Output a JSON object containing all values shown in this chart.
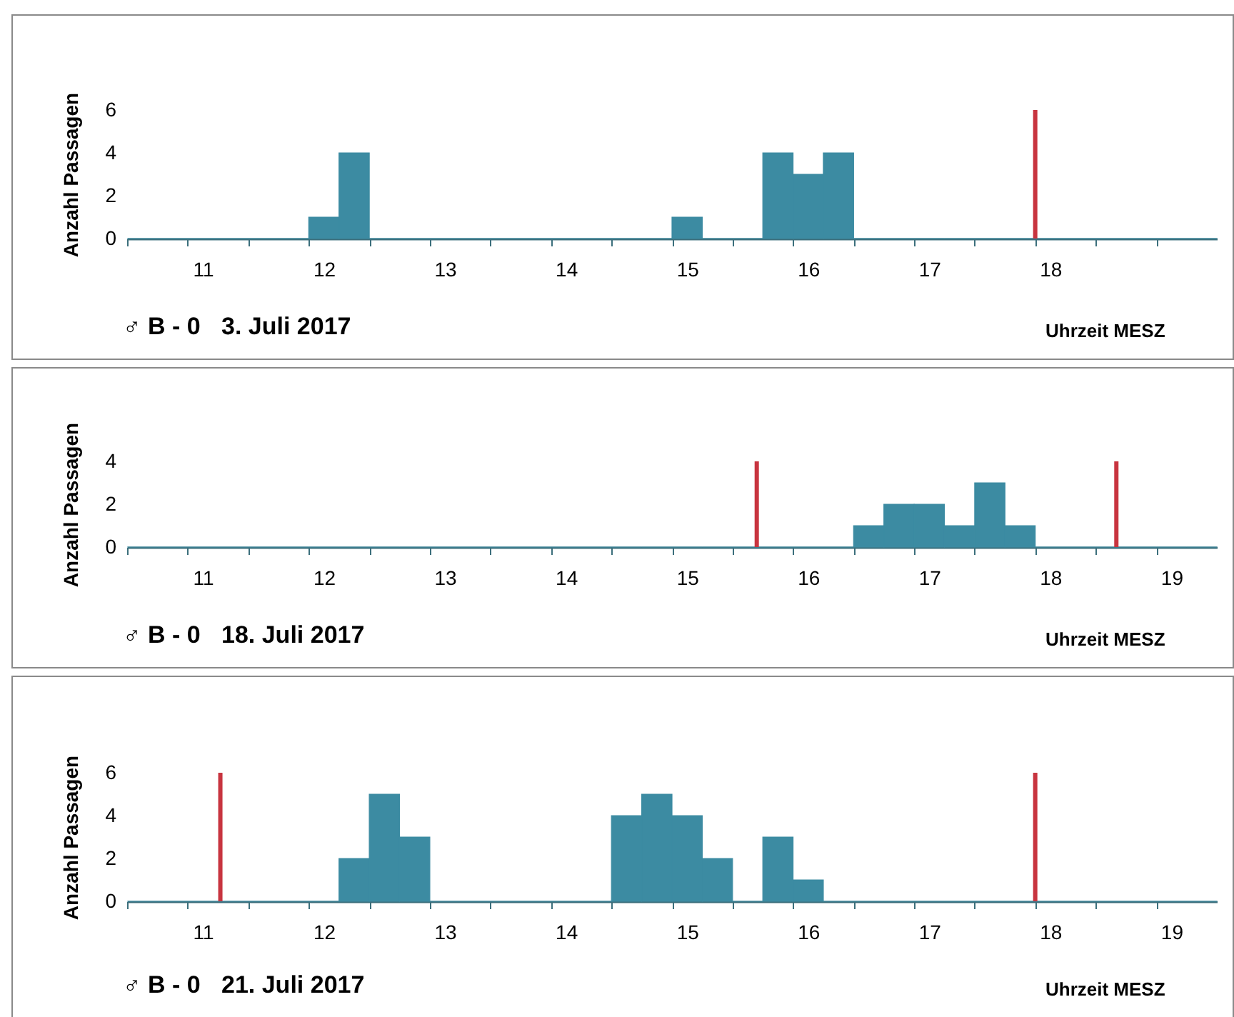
{
  "chart_data": [
    {
      "type": "histogram",
      "title": "♂ B - 0",
      "subtitle": "3. Juli 2017",
      "xlabel": "Uhrzeit MESZ",
      "ylabel": "Anzahl  Passagen",
      "color": "#3c8ba2",
      "bins": [
        10.5,
        10.75,
        11,
        11.25,
        11.5,
        11.75,
        12,
        12.25,
        12.5,
        12.75,
        13,
        13.25,
        13.5,
        13.75,
        14,
        14.25,
        14.5,
        14.75,
        15,
        15.25,
        15.5,
        15.75,
        16,
        16.25,
        16.5,
        16.75,
        17,
        17.25,
        17.5,
        17.75,
        18,
        18.25,
        18.5,
        18.75,
        19,
        19.25,
        19.5
      ],
      "values": [
        0,
        0,
        0,
        0,
        0,
        0,
        1,
        4,
        0,
        0,
        0,
        0,
        0,
        0,
        0,
        0,
        0,
        0,
        1,
        0,
        0,
        4,
        3,
        4,
        0,
        0,
        0,
        0,
        0,
        0,
        0,
        0,
        0,
        0,
        0,
        0
      ],
      "xlim": [
        10.5,
        19.5
      ],
      "xticks": [
        {
          "value": 10.5,
          "label": null
        },
        {
          "value": 11,
          "label": null
        },
        {
          "value": 11.125,
          "label": "11"
        },
        {
          "value": 11.5,
          "label": null
        },
        {
          "value": 12,
          "label": null
        },
        {
          "value": 12.125,
          "label": "12"
        },
        {
          "value": 12.5,
          "label": null
        },
        {
          "value": 13,
          "label": null
        },
        {
          "value": 13.125,
          "label": "13"
        },
        {
          "value": 13.5,
          "label": null
        },
        {
          "value": 14,
          "label": null
        },
        {
          "value": 14.125,
          "label": "14"
        },
        {
          "value": 14.5,
          "label": null
        },
        {
          "value": 15,
          "label": null
        },
        {
          "value": 15.125,
          "label": "15"
        },
        {
          "value": 15.5,
          "label": null
        },
        {
          "value": 16,
          "label": null
        },
        {
          "value": 16.125,
          "label": "16"
        },
        {
          "value": 16.5,
          "label": null
        },
        {
          "value": 17,
          "label": null
        },
        {
          "value": 17.125,
          "label": "17"
        },
        {
          "value": 17.5,
          "label": null
        },
        {
          "value": 18,
          "label": null
        },
        {
          "value": 18.125,
          "label": "18"
        },
        {
          "value": 18.5,
          "label": null
        },
        {
          "value": 19,
          "label": null
        }
      ],
      "ylim": [
        0,
        6
      ],
      "yticks": [
        0,
        2,
        4,
        6
      ],
      "grid": false,
      "ref_lines": [
        {
          "axis": "x",
          "value": 18.0,
          "color": "#c8343f"
        }
      ]
    },
    {
      "type": "histogram",
      "title": "♂ B - 0",
      "subtitle": "18. Juli 2017",
      "xlabel": "Uhrzeit MESZ",
      "ylabel": "Anzahl  Passagen",
      "color": "#3c8ba2",
      "bins": [
        10.5,
        10.75,
        11,
        11.25,
        11.5,
        11.75,
        12,
        12.25,
        12.5,
        12.75,
        13,
        13.25,
        13.5,
        13.75,
        14,
        14.25,
        14.5,
        14.75,
        15,
        15.25,
        15.5,
        15.75,
        16,
        16.25,
        16.5,
        16.75,
        17,
        17.25,
        17.5,
        17.75,
        18,
        18.25,
        18.5,
        18.75,
        19,
        19.25,
        19.5
      ],
      "values": [
        0,
        0,
        0,
        0,
        0,
        0,
        0,
        0,
        0,
        0,
        0,
        0,
        0,
        0,
        0,
        0,
        0,
        0,
        0,
        0,
        0,
        0,
        0,
        0,
        1,
        2,
        2,
        1,
        3,
        1,
        0,
        0,
        0,
        0,
        0,
        0
      ],
      "xlim": [
        10.5,
        19.5
      ],
      "xticks": [
        {
          "value": 10.5,
          "label": null
        },
        {
          "value": 11,
          "label": null
        },
        {
          "value": 11.125,
          "label": "11"
        },
        {
          "value": 11.5,
          "label": null
        },
        {
          "value": 12,
          "label": null
        },
        {
          "value": 12.125,
          "label": "12"
        },
        {
          "value": 12.5,
          "label": null
        },
        {
          "value": 13,
          "label": null
        },
        {
          "value": 13.125,
          "label": "13"
        },
        {
          "value": 13.5,
          "label": null
        },
        {
          "value": 14,
          "label": null
        },
        {
          "value": 14.125,
          "label": "14"
        },
        {
          "value": 14.5,
          "label": null
        },
        {
          "value": 15,
          "label": null
        },
        {
          "value": 15.125,
          "label": "15"
        },
        {
          "value": 15.5,
          "label": null
        },
        {
          "value": 16,
          "label": null
        },
        {
          "value": 16.125,
          "label": "16"
        },
        {
          "value": 16.5,
          "label": null
        },
        {
          "value": 17,
          "label": null
        },
        {
          "value": 17.125,
          "label": "17"
        },
        {
          "value": 17.5,
          "label": null
        },
        {
          "value": 18,
          "label": null
        },
        {
          "value": 18.125,
          "label": "18"
        },
        {
          "value": 18.5,
          "label": null
        },
        {
          "value": 19,
          "label": null
        },
        {
          "value": 19.125,
          "label": "19"
        }
      ],
      "ylim": [
        0,
        4
      ],
      "yticks": [
        0,
        2,
        4
      ],
      "grid": false,
      "ref_lines": [
        {
          "axis": "x",
          "value": 15.7,
          "color": "#c8343f"
        },
        {
          "axis": "x",
          "value": 18.67,
          "color": "#c8343f"
        }
      ]
    },
    {
      "type": "histogram",
      "title": "♂ B - 0",
      "subtitle": "21. Juli 2017",
      "xlabel": "Uhrzeit MESZ",
      "ylabel": "Anzahl  Passagen",
      "color": "#3c8ba2",
      "bins": [
        10.5,
        10.75,
        11,
        11.25,
        11.5,
        11.75,
        12,
        12.25,
        12.5,
        12.75,
        13,
        13.25,
        13.5,
        13.75,
        14,
        14.25,
        14.5,
        14.75,
        15,
        15.25,
        15.5,
        15.75,
        16,
        16.25,
        16.5,
        16.75,
        17,
        17.25,
        17.5,
        17.75,
        18,
        18.25,
        18.5,
        18.75,
        19,
        19.25,
        19.5
      ],
      "values": [
        0,
        0,
        0,
        0,
        0,
        0,
        0,
        2,
        5,
        3,
        0,
        0,
        0,
        0,
        0,
        0,
        4,
        5,
        4,
        2,
        0,
        3,
        1,
        0,
        0,
        0,
        0,
        0,
        0,
        0,
        0,
        0,
        0,
        0,
        0,
        0
      ],
      "xlim": [
        10.5,
        19.5
      ],
      "xticks": [
        {
          "value": 10.5,
          "label": null
        },
        {
          "value": 11,
          "label": null
        },
        {
          "value": 11.125,
          "label": "11"
        },
        {
          "value": 11.5,
          "label": null
        },
        {
          "value": 12,
          "label": null
        },
        {
          "value": 12.125,
          "label": "12"
        },
        {
          "value": 12.5,
          "label": null
        },
        {
          "value": 13,
          "label": null
        },
        {
          "value": 13.125,
          "label": "13"
        },
        {
          "value": 13.5,
          "label": null
        },
        {
          "value": 14,
          "label": null
        },
        {
          "value": 14.125,
          "label": "14"
        },
        {
          "value": 14.5,
          "label": null
        },
        {
          "value": 15,
          "label": null
        },
        {
          "value": 15.125,
          "label": "15"
        },
        {
          "value": 15.5,
          "label": null
        },
        {
          "value": 16,
          "label": null
        },
        {
          "value": 16.125,
          "label": "16"
        },
        {
          "value": 16.5,
          "label": null
        },
        {
          "value": 17,
          "label": null
        },
        {
          "value": 17.125,
          "label": "17"
        },
        {
          "value": 17.5,
          "label": null
        },
        {
          "value": 18,
          "label": null
        },
        {
          "value": 18.125,
          "label": "18"
        },
        {
          "value": 18.5,
          "label": null
        },
        {
          "value": 19,
          "label": null
        },
        {
          "value": 19.125,
          "label": "19"
        }
      ],
      "ylim": [
        0,
        6
      ],
      "yticks": [
        0,
        2,
        4,
        6
      ],
      "grid": false,
      "ref_lines": [
        {
          "axis": "x",
          "value": 11.27,
          "color": "#c8343f"
        },
        {
          "axis": "x",
          "value": 18.0,
          "color": "#c8343f"
        }
      ]
    }
  ]
}
